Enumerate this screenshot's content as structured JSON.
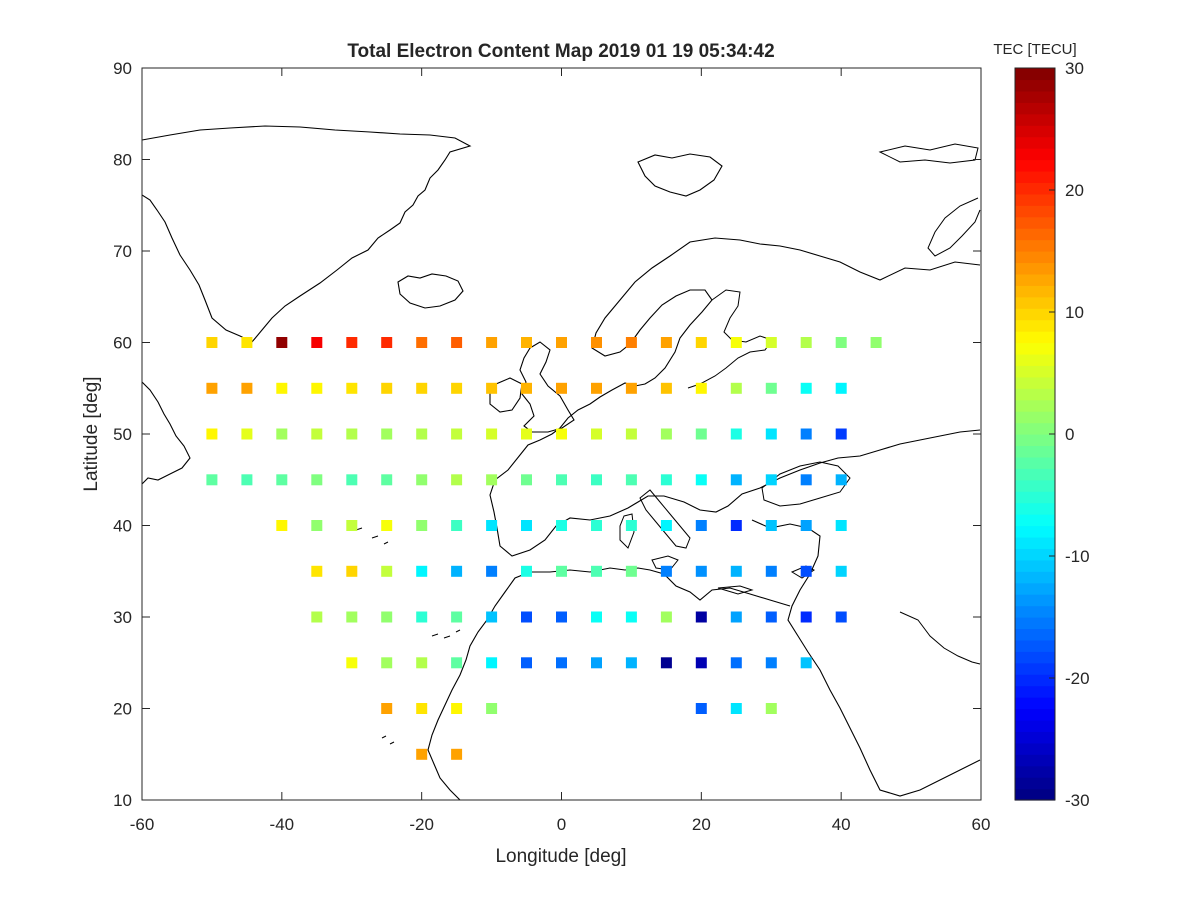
{
  "chart_data": {
    "type": "heatmap",
    "title": "Total Electron Content Map 2019 01 19 05:34:42",
    "xlabel": "Longitude [deg]",
    "ylabel": "Latitude [deg]",
    "xlim": [
      -60,
      60
    ],
    "ylim": [
      10,
      90
    ],
    "xticks": [
      "-60",
      "-40",
      "-20",
      "0",
      "20",
      "40",
      "60"
    ],
    "yticks": [
      "10",
      "20",
      "30",
      "40",
      "50",
      "60",
      "70",
      "80",
      "90"
    ],
    "colorbar": {
      "title": "TEC [TECU]",
      "colormap": "jet",
      "range": [
        -30,
        30
      ],
      "ticks": [
        "-30",
        "-20",
        "-10",
        "0",
        "10",
        "20",
        "30"
      ]
    },
    "basemap": "coastlines (North Atlantic, Europe, North Africa, Middle East)",
    "grid": false,
    "points": [
      {
        "lon": -50,
        "lat": 60,
        "tec": 10
      },
      {
        "lon": -45,
        "lat": 60,
        "tec": 9
      },
      {
        "lon": -40,
        "lat": 60,
        "tec": 29
      },
      {
        "lon": -35,
        "lat": 60,
        "tec": 23
      },
      {
        "lon": -30,
        "lat": 60,
        "tec": 20
      },
      {
        "lon": -25,
        "lat": 60,
        "tec": 20
      },
      {
        "lon": -20,
        "lat": 60,
        "tec": 16
      },
      {
        "lon": -15,
        "lat": 60,
        "tec": 17
      },
      {
        "lon": -10,
        "lat": 60,
        "tec": 13
      },
      {
        "lon": -5,
        "lat": 60,
        "tec": 12
      },
      {
        "lon": 0,
        "lat": 60,
        "tec": 13
      },
      {
        "lon": 5,
        "lat": 60,
        "tec": 14
      },
      {
        "lon": 10,
        "lat": 60,
        "tec": 15
      },
      {
        "lon": 15,
        "lat": 60,
        "tec": 13
      },
      {
        "lon": 20,
        "lat": 60,
        "tec": 10
      },
      {
        "lon": 25,
        "lat": 60,
        "tec": 7
      },
      {
        "lon": 30,
        "lat": 60,
        "tec": 5
      },
      {
        "lon": 35,
        "lat": 60,
        "tec": 3
      },
      {
        "lon": 40,
        "lat": 60,
        "tec": 0
      },
      {
        "lon": 45,
        "lat": 60,
        "tec": 1
      },
      {
        "lon": -50,
        "lat": 55,
        "tec": 13
      },
      {
        "lon": -45,
        "lat": 55,
        "tec": 13
      },
      {
        "lon": -40,
        "lat": 55,
        "tec": 8
      },
      {
        "lon": -35,
        "lat": 55,
        "tec": 8
      },
      {
        "lon": -30,
        "lat": 55,
        "tec": 9
      },
      {
        "lon": -25,
        "lat": 55,
        "tec": 10
      },
      {
        "lon": -20,
        "lat": 55,
        "tec": 10
      },
      {
        "lon": -15,
        "lat": 55,
        "tec": 10
      },
      {
        "lon": -10,
        "lat": 55,
        "tec": 11
      },
      {
        "lon": -5,
        "lat": 55,
        "tec": 12
      },
      {
        "lon": 0,
        "lat": 55,
        "tec": 13
      },
      {
        "lon": 5,
        "lat": 55,
        "tec": 13
      },
      {
        "lon": 10,
        "lat": 55,
        "tec": 13
      },
      {
        "lon": 15,
        "lat": 55,
        "tec": 11
      },
      {
        "lon": 20,
        "lat": 55,
        "tec": 8
      },
      {
        "lon": 25,
        "lat": 55,
        "tec": 3
      },
      {
        "lon": 30,
        "lat": 55,
        "tec": -1
      },
      {
        "lon": 35,
        "lat": 55,
        "tec": -7
      },
      {
        "lon": 40,
        "lat": 55,
        "tec": -8
      },
      {
        "lon": -50,
        "lat": 50,
        "tec": 8
      },
      {
        "lon": -45,
        "lat": 50,
        "tec": 6
      },
      {
        "lon": -40,
        "lat": 50,
        "tec": 2
      },
      {
        "lon": -35,
        "lat": 50,
        "tec": 4
      },
      {
        "lon": -30,
        "lat": 50,
        "tec": 3
      },
      {
        "lon": -25,
        "lat": 50,
        "tec": 2
      },
      {
        "lon": -20,
        "lat": 50,
        "tec": 3
      },
      {
        "lon": -15,
        "lat": 50,
        "tec": 4
      },
      {
        "lon": -10,
        "lat": 50,
        "tec": 5
      },
      {
        "lon": -5,
        "lat": 50,
        "tec": 6
      },
      {
        "lon": 0,
        "lat": 50,
        "tec": 7
      },
      {
        "lon": 5,
        "lat": 50,
        "tec": 5
      },
      {
        "lon": 10,
        "lat": 50,
        "tec": 4
      },
      {
        "lon": 15,
        "lat": 50,
        "tec": 2
      },
      {
        "lon": 20,
        "lat": 50,
        "tec": -1
      },
      {
        "lon": 25,
        "lat": 50,
        "tec": -6
      },
      {
        "lon": 30,
        "lat": 50,
        "tec": -9
      },
      {
        "lon": 35,
        "lat": 50,
        "tec": -15
      },
      {
        "lon": 40,
        "lat": 50,
        "tec": -19
      },
      {
        "lon": -50,
        "lat": 45,
        "tec": -2
      },
      {
        "lon": -45,
        "lat": 45,
        "tec": -3
      },
      {
        "lon": -40,
        "lat": 45,
        "tec": -2
      },
      {
        "lon": -35,
        "lat": 45,
        "tec": 0
      },
      {
        "lon": -30,
        "lat": 45,
        "tec": -3
      },
      {
        "lon": -25,
        "lat": 45,
        "tec": -2
      },
      {
        "lon": -20,
        "lat": 45,
        "tec": 1
      },
      {
        "lon": -15,
        "lat": 45,
        "tec": 3
      },
      {
        "lon": -10,
        "lat": 45,
        "tec": 2
      },
      {
        "lon": -5,
        "lat": 45,
        "tec": -1
      },
      {
        "lon": 0,
        "lat": 45,
        "tec": -3
      },
      {
        "lon": 5,
        "lat": 45,
        "tec": -4
      },
      {
        "lon": 10,
        "lat": 45,
        "tec": -3
      },
      {
        "lon": 15,
        "lat": 45,
        "tec": -5
      },
      {
        "lon": 20,
        "lat": 45,
        "tec": -7
      },
      {
        "lon": 25,
        "lat": 45,
        "tec": -12
      },
      {
        "lon": 30,
        "lat": 45,
        "tec": -10
      },
      {
        "lon": 35,
        "lat": 45,
        "tec": -15
      },
      {
        "lon": 40,
        "lat": 45,
        "tec": -12
      },
      {
        "lon": -40,
        "lat": 40,
        "tec": 8
      },
      {
        "lon": -35,
        "lat": 40,
        "tec": 1
      },
      {
        "lon": -30,
        "lat": 40,
        "tec": 4
      },
      {
        "lon": -25,
        "lat": 40,
        "tec": 7
      },
      {
        "lon": -20,
        "lat": 40,
        "tec": 1
      },
      {
        "lon": -15,
        "lat": 40,
        "tec": -4
      },
      {
        "lon": -10,
        "lat": 40,
        "tec": -9
      },
      {
        "lon": -5,
        "lat": 40,
        "tec": -9
      },
      {
        "lon": 0,
        "lat": 40,
        "tec": -6
      },
      {
        "lon": 5,
        "lat": 40,
        "tec": -5
      },
      {
        "lon": 10,
        "lat": 40,
        "tec": -5
      },
      {
        "lon": 15,
        "lat": 40,
        "tec": -8
      },
      {
        "lon": 20,
        "lat": 40,
        "tec": -15
      },
      {
        "lon": 25,
        "lat": 40,
        "tec": -20
      },
      {
        "lon": 30,
        "lat": 40,
        "tec": -11
      },
      {
        "lon": 35,
        "lat": 40,
        "tec": -13
      },
      {
        "lon": 40,
        "lat": 40,
        "tec": -9
      },
      {
        "lon": -35,
        "lat": 35,
        "tec": 9
      },
      {
        "lon": -30,
        "lat": 35,
        "tec": 10
      },
      {
        "lon": -25,
        "lat": 35,
        "tec": 4
      },
      {
        "lon": -20,
        "lat": 35,
        "tec": -8
      },
      {
        "lon": -15,
        "lat": 35,
        "tec": -12
      },
      {
        "lon": -10,
        "lat": 35,
        "tec": -15
      },
      {
        "lon": -5,
        "lat": 35,
        "tec": -6
      },
      {
        "lon": 0,
        "lat": 35,
        "tec": -2
      },
      {
        "lon": 5,
        "lat": 35,
        "tec": -3
      },
      {
        "lon": 10,
        "lat": 35,
        "tec": -1
      },
      {
        "lon": 15,
        "lat": 35,
        "tec": -15
      },
      {
        "lon": 20,
        "lat": 35,
        "tec": -14
      },
      {
        "lon": 25,
        "lat": 35,
        "tec": -12
      },
      {
        "lon": 30,
        "lat": 35,
        "tec": -15
      },
      {
        "lon": 35,
        "lat": 35,
        "tec": -18
      },
      {
        "lon": 40,
        "lat": 35,
        "tec": -10
      },
      {
        "lon": -35,
        "lat": 30,
        "tec": 3
      },
      {
        "lon": -30,
        "lat": 30,
        "tec": 2
      },
      {
        "lon": -25,
        "lat": 30,
        "tec": 1
      },
      {
        "lon": -20,
        "lat": 30,
        "tec": -5
      },
      {
        "lon": -15,
        "lat": 30,
        "tec": -2
      },
      {
        "lon": -10,
        "lat": 30,
        "tec": -11
      },
      {
        "lon": -5,
        "lat": 30,
        "tec": -18
      },
      {
        "lon": 0,
        "lat": 30,
        "tec": -17
      },
      {
        "lon": 5,
        "lat": 30,
        "tec": -7
      },
      {
        "lon": 10,
        "lat": 30,
        "tec": -7
      },
      {
        "lon": 15,
        "lat": 30,
        "tec": 2
      },
      {
        "lon": 20,
        "lat": 30,
        "tec": -28
      },
      {
        "lon": 25,
        "lat": 30,
        "tec": -13
      },
      {
        "lon": 30,
        "lat": 30,
        "tec": -17
      },
      {
        "lon": 35,
        "lat": 30,
        "tec": -20
      },
      {
        "lon": 40,
        "lat": 30,
        "tec": -18
      },
      {
        "lon": -30,
        "lat": 25,
        "tec": 7
      },
      {
        "lon": -25,
        "lat": 25,
        "tec": 2
      },
      {
        "lon": -20,
        "lat": 25,
        "tec": 3
      },
      {
        "lon": -15,
        "lat": 25,
        "tec": -2
      },
      {
        "lon": -10,
        "lat": 25,
        "tec": -8
      },
      {
        "lon": -5,
        "lat": 25,
        "tec": -17
      },
      {
        "lon": 0,
        "lat": 25,
        "tec": -16
      },
      {
        "lon": 5,
        "lat": 25,
        "tec": -13
      },
      {
        "lon": 10,
        "lat": 25,
        "tec": -12
      },
      {
        "lon": 15,
        "lat": 25,
        "tec": -29
      },
      {
        "lon": 20,
        "lat": 25,
        "tec": -27
      },
      {
        "lon": 25,
        "lat": 25,
        "tec": -16
      },
      {
        "lon": 30,
        "lat": 25,
        "tec": -15
      },
      {
        "lon": 35,
        "lat": 25,
        "tec": -11
      },
      {
        "lon": -25,
        "lat": 20,
        "tec": 13
      },
      {
        "lon": -20,
        "lat": 20,
        "tec": 9
      },
      {
        "lon": -15,
        "lat": 20,
        "tec": 8
      },
      {
        "lon": -10,
        "lat": 20,
        "tec": 1
      },
      {
        "lon": 20,
        "lat": 20,
        "tec": -17
      },
      {
        "lon": 25,
        "lat": 20,
        "tec": -9
      },
      {
        "lon": 30,
        "lat": 20,
        "tec": 2
      },
      {
        "lon": -20,
        "lat": 15,
        "tec": 13
      },
      {
        "lon": -15,
        "lat": 15,
        "tec": 13
      }
    ]
  }
}
